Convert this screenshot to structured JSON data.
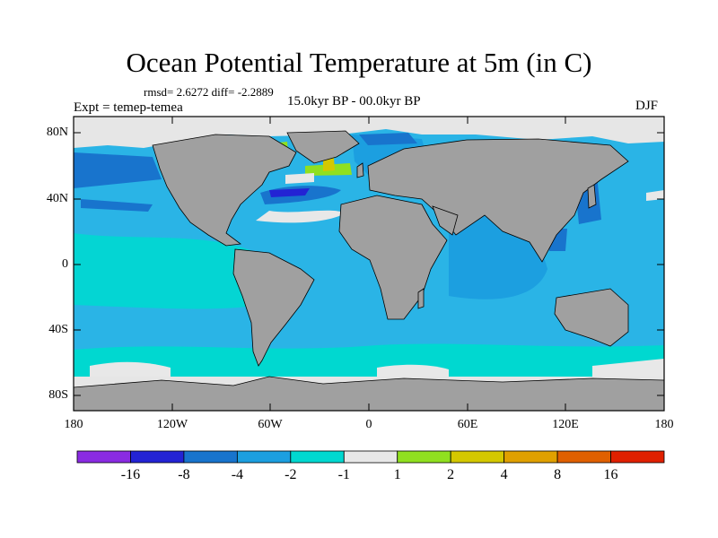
{
  "title": "Ocean Potential Temperature at 5m (in C)",
  "stats": {
    "rmsd_label": "rmsd= 2.6272 diff= -2.2889"
  },
  "experiment_label": "Expt = temep-temea",
  "period_label": "15.0kyr BP - 00.0kyr BP",
  "season_label": "DJF",
  "lat_ticks": [
    "80N",
    "40N",
    "0",
    "40S",
    "80S"
  ],
  "lon_ticks": [
    "180",
    "120W",
    "60W",
    "0",
    "60E",
    "120E",
    "180"
  ],
  "colorbar": {
    "colors": [
      "#8a2be2",
      "#2323d4",
      "#1874cd",
      "#1c9fe0",
      "#00d8d0",
      "#e8e8e8",
      "#90e020",
      "#d4c800",
      "#e0a000",
      "#e06000",
      "#e02000"
    ],
    "labels": [
      "-16",
      "-8",
      "-4",
      "-2",
      "-1",
      "1",
      "2",
      "4",
      "8",
      "16"
    ]
  },
  "map_colors": {
    "ocean": "#2ab4e6",
    "land": "#a0a0a0",
    "ice": "#e6e6e6",
    "coast": "#000000"
  }
}
